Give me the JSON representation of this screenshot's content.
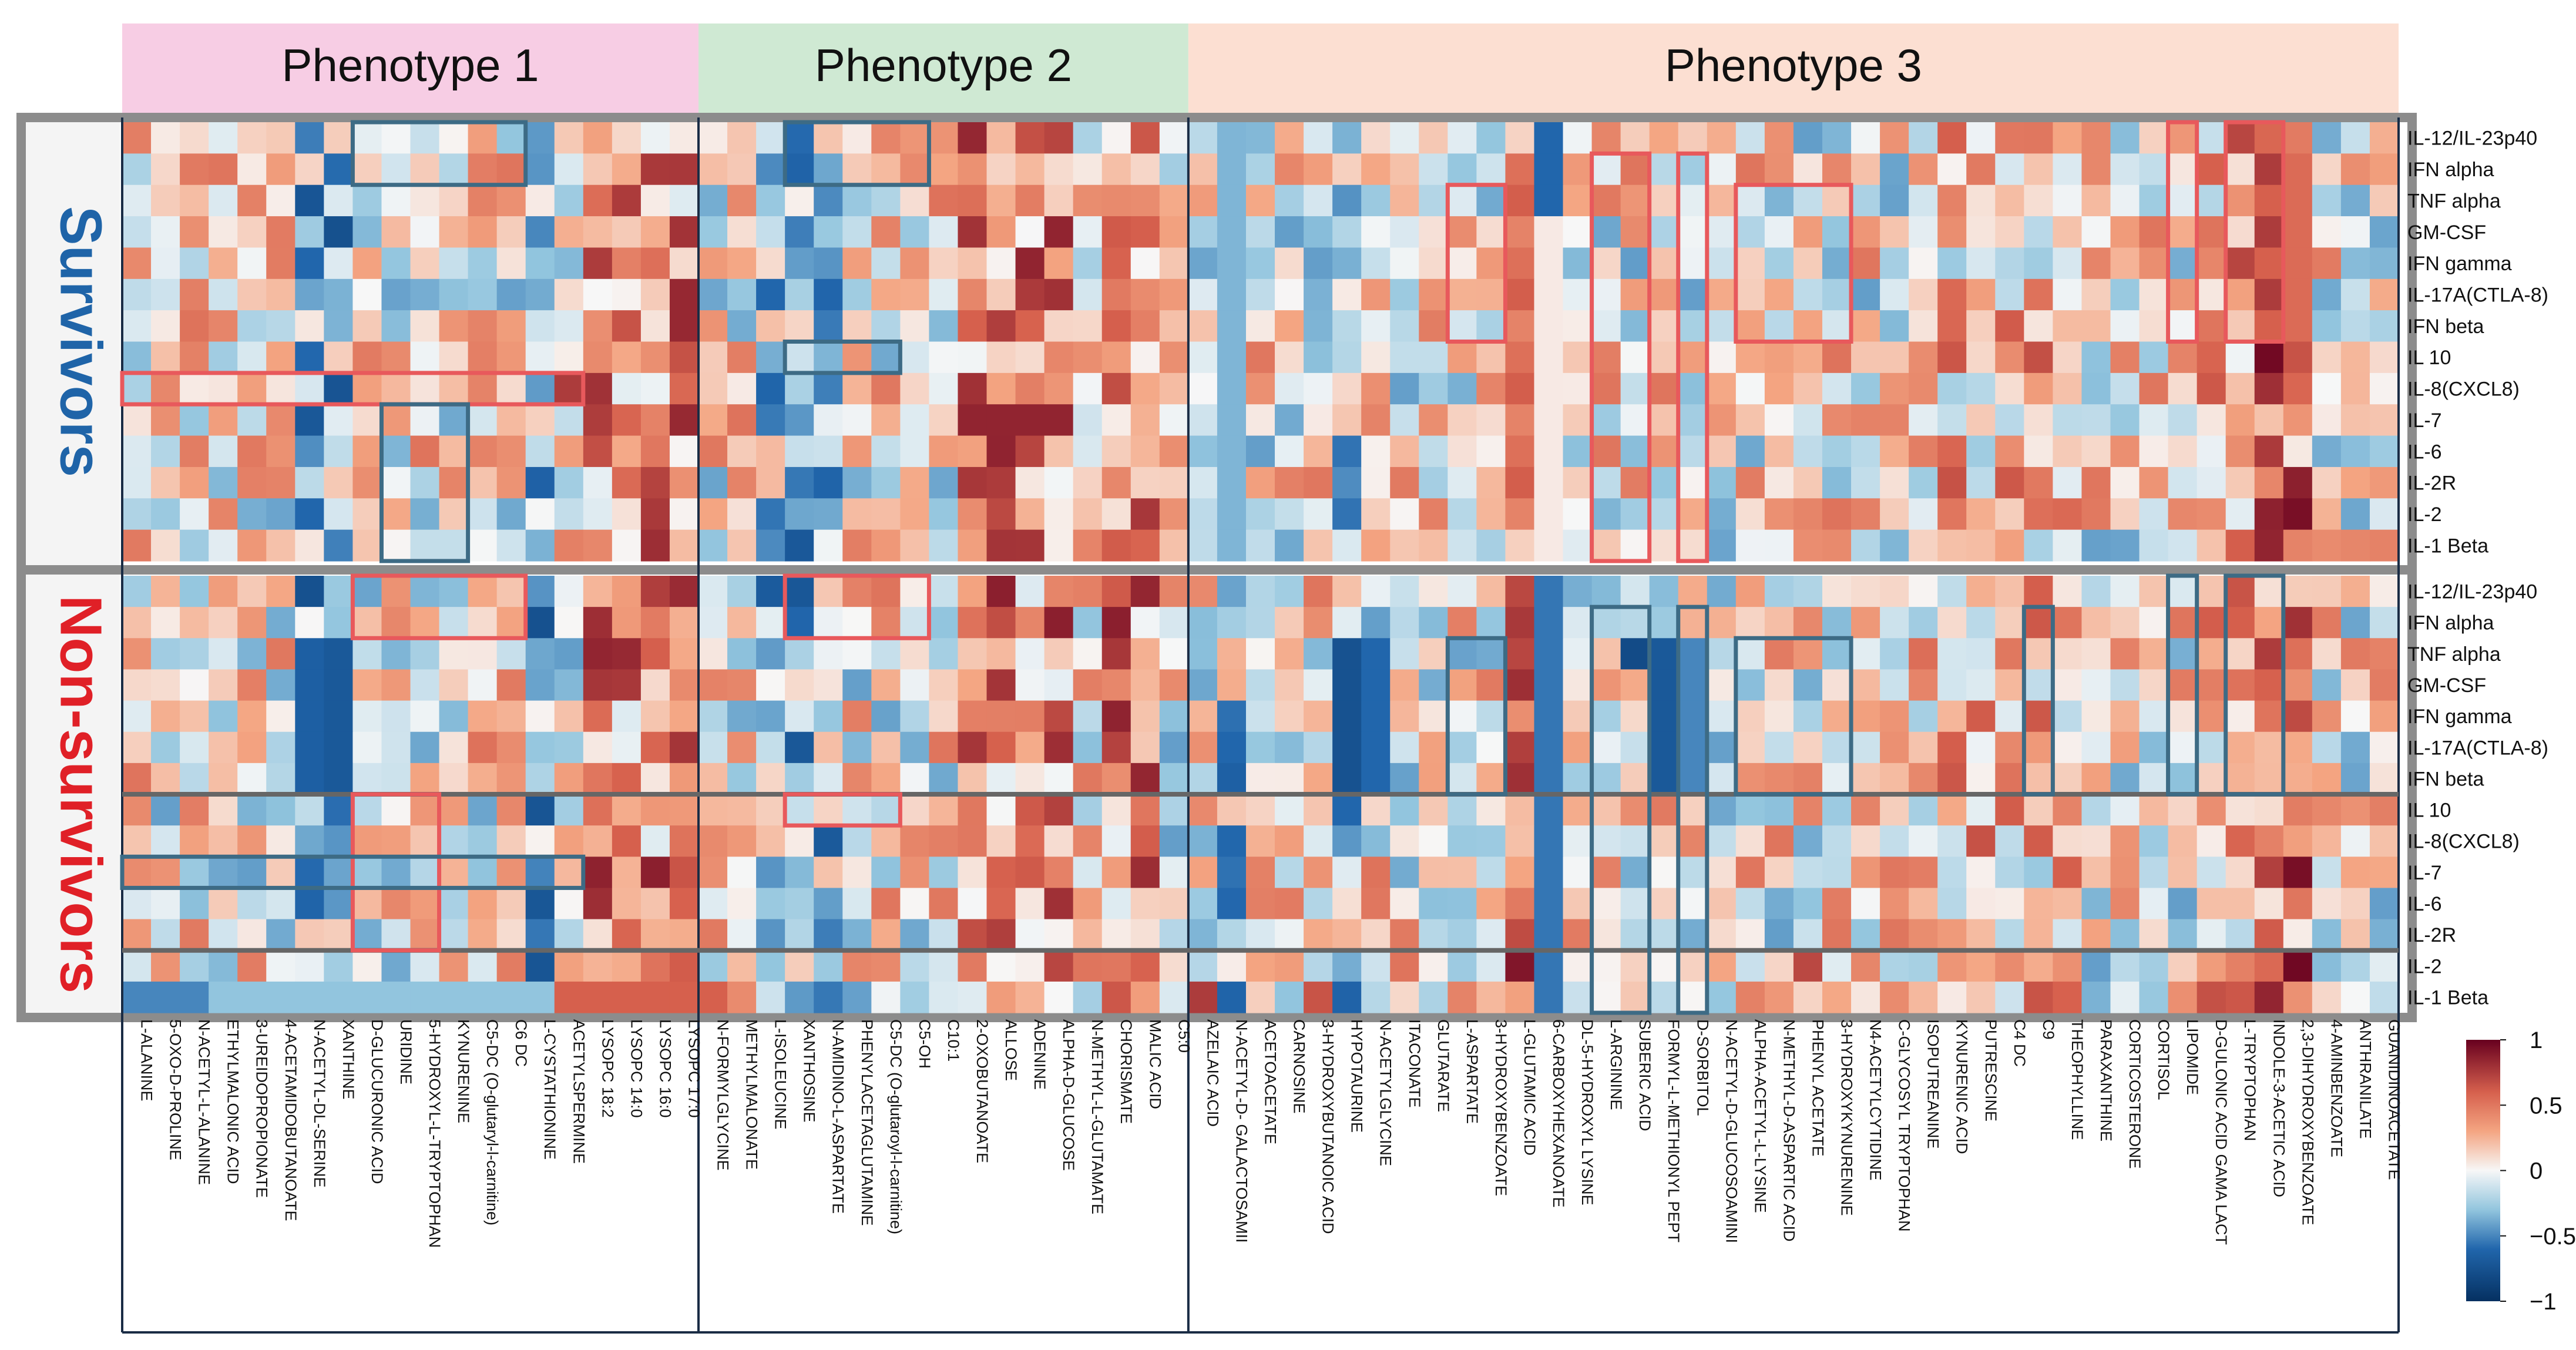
{
  "chart_data": {
    "type": "heatmap",
    "title": "",
    "phenotypes": [
      {
        "label": "Phenotype 1",
        "color": "#f7cde4"
      },
      {
        "label": "Phenotype 2",
        "color": "#cfe9d3"
      },
      {
        "label": "Phenotype 3",
        "color": "#fcdfd2"
      }
    ],
    "groups": [
      {
        "label": "Survivors",
        "color": "#1f64a8"
      },
      {
        "label": "Non-survivors",
        "color": "#e02027"
      }
    ],
    "rows": [
      "IL-12/IL-23p40",
      "IFN alpha",
      "TNF alpha",
      "GM-CSF",
      "IFN gamma",
      "IL-17A(CTLA-8)",
      "IFN beta",
      "IL 10",
      "IL-8(CXCL8)",
      "IL-7",
      "IL-6",
      "IL-2R",
      "IL-2",
      "IL-1 Beta"
    ],
    "columns": [
      "L-ALANINE",
      "5-OXO-D-PROLINE",
      "N-ACETYL-L-ALANINE",
      "ETHYLMALONIC ACID",
      "3-UREIDOPROPIONATE",
      "4-ACETAMIDOBUTANOATE",
      "N-ACETYL-DL-SERINE",
      "XANTHINE",
      "D-GLUCURONIC ACID",
      "URIDINE",
      "5-HYDROXYL-L-TRYPTOPHAN",
      "KYNURENINE",
      "C5-DC (O-glutaryl-l-carnitine)",
      "C6 DC",
      "L-CYSTATHIONINE",
      "ACETYLSPERMINE",
      "LYSOPC 18:2",
      "LYSOPC 14:0",
      "LYSOPC 16:0",
      "LYSOPC 17:0",
      "N-FORMYLGLYCINE",
      "METHYLMALONATE",
      "L-ISOLEUCINE",
      "XANTHOSINE",
      "N-AMIDINO-L-ASPARTATE",
      "PHENYLACETAGLUTAMINE",
      "C5-DC (O-glutaroyl-l-carnitine)",
      "C5-OH",
      "C10:1",
      "2-OXOBUTANOATE",
      "ALLOSE",
      "ADENINE",
      "ALPHA-D-GLUCOSE",
      "N-METHYL-L-GLUTAMATE",
      "CHORISMATE",
      "MALIC ACID",
      "C5:0",
      "AZELAIC ACID",
      "N-ACETYL-D- GALACTOSAMII",
      "ACETOACETATE",
      "CARNOSINE",
      "3-HYDROXYBUTANOIC ACID",
      "HYPOTAURINE",
      "N-ACETYLGLYCINE",
      "ITACONATE",
      "GLUTARATE",
      "L-ASPARTATE",
      "3-HYDROXYBENZOATE",
      "L-GLUTAMIC ACID",
      "6-CARBOXYHEXANOATE",
      "DL-5-HYDROXYL LYSINE",
      "L-ARGININE",
      "SUBERIC ACID",
      "FORMYL-L-METHIONYL PEPT",
      "D-SORBITOL",
      "N-ACETYL-D-GLUCOSOAMINI",
      "ALPHA-ACETYL-L-LYSINE",
      "N-METHYL-D-ASPARTIC ACID",
      "PHENYL ACETATE",
      "3-HYDROXYKYNURENINE",
      "N4-ACETYLCYTIDINE",
      "C-GLYCOSYL TRYPTOPHAN",
      "ISOPUTREANINE",
      "KYNURENIC ACID",
      "PUTRESCINE",
      "C4 DC",
      "C9",
      "THEOPHYLLINE",
      "PARAXANTHINE",
      "CORTICOSTERONE",
      "CORTISOL",
      "LIPOMIDE",
      "D-GULONIC ACID GAMA LACT",
      "L-TRYPTOPHAN",
      "INDOLE-3-ACETIC ACID",
      "2,3-DIHYDROXYBENZOATE",
      "4-AMINBENZOATE",
      "ANTHRANILATE",
      "GUANIDINOACETATE"
    ],
    "colorbar": {
      "ticks": [
        "1",
        "0.5",
        "0",
        "−0.5",
        "−1"
      ],
      "range": [
        -1,
        1
      ]
    }
  }
}
